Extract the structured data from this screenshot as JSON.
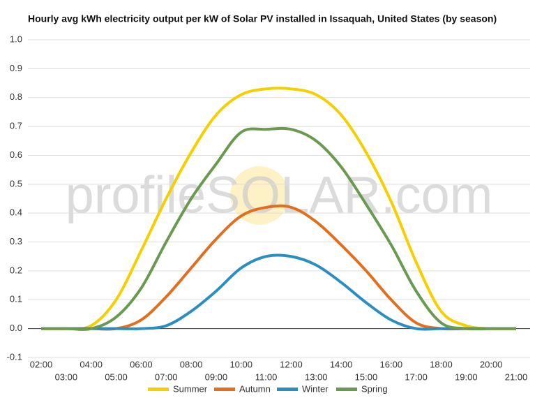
{
  "chart_data": {
    "type": "line",
    "title": "Hourly avg kWh electricity output per kW of Solar PV installed in Issaquah, United States (by season)",
    "watermark": "profileSOLAR.com",
    "categories": [
      "02:00",
      "03:00",
      "04:00",
      "05:00",
      "06:00",
      "07:00",
      "08:00",
      "09:00",
      "10:00",
      "11:00",
      "12:00",
      "13:00",
      "14:00",
      "15:00",
      "16:00",
      "17:00",
      "18:00",
      "19:00",
      "20:00",
      "21:00"
    ],
    "series": [
      {
        "name": "Summer",
        "color": "#f5d000",
        "values": [
          0,
          0,
          0.01,
          0.1,
          0.27,
          0.45,
          0.61,
          0.74,
          0.81,
          0.83,
          0.83,
          0.81,
          0.74,
          0.61,
          0.44,
          0.23,
          0.06,
          0.01,
          0,
          0
        ]
      },
      {
        "name": "Autumn",
        "color": "#e07020",
        "values": [
          0,
          0,
          0,
          0,
          0.03,
          0.11,
          0.21,
          0.31,
          0.39,
          0.42,
          0.42,
          0.37,
          0.29,
          0.2,
          0.1,
          0.02,
          0,
          0,
          0,
          0
        ]
      },
      {
        "name": "Winter",
        "color": "#2a8fc0",
        "values": [
          0,
          0,
          0,
          0,
          0,
          0.01,
          0.06,
          0.13,
          0.21,
          0.25,
          0.25,
          0.22,
          0.16,
          0.09,
          0.03,
          0,
          0,
          0,
          0,
          0
        ]
      },
      {
        "name": "Spring",
        "color": "#6a9a50",
        "values": [
          0,
          0,
          0,
          0.04,
          0.14,
          0.3,
          0.45,
          0.57,
          0.68,
          0.69,
          0.69,
          0.65,
          0.56,
          0.43,
          0.29,
          0.13,
          0.02,
          0,
          0,
          0
        ]
      }
    ],
    "ylim": [
      -0.1,
      1.0
    ],
    "yticks": [
      -0.1,
      {
        "value": 0,
        "label": "0.0"
      },
      0.1,
      0.2,
      0.3,
      0.4,
      0.5,
      0.6,
      0.7,
      0.8,
      0.9,
      {
        "value": 1,
        "label": "1.0"
      }
    ],
    "grid": true
  }
}
